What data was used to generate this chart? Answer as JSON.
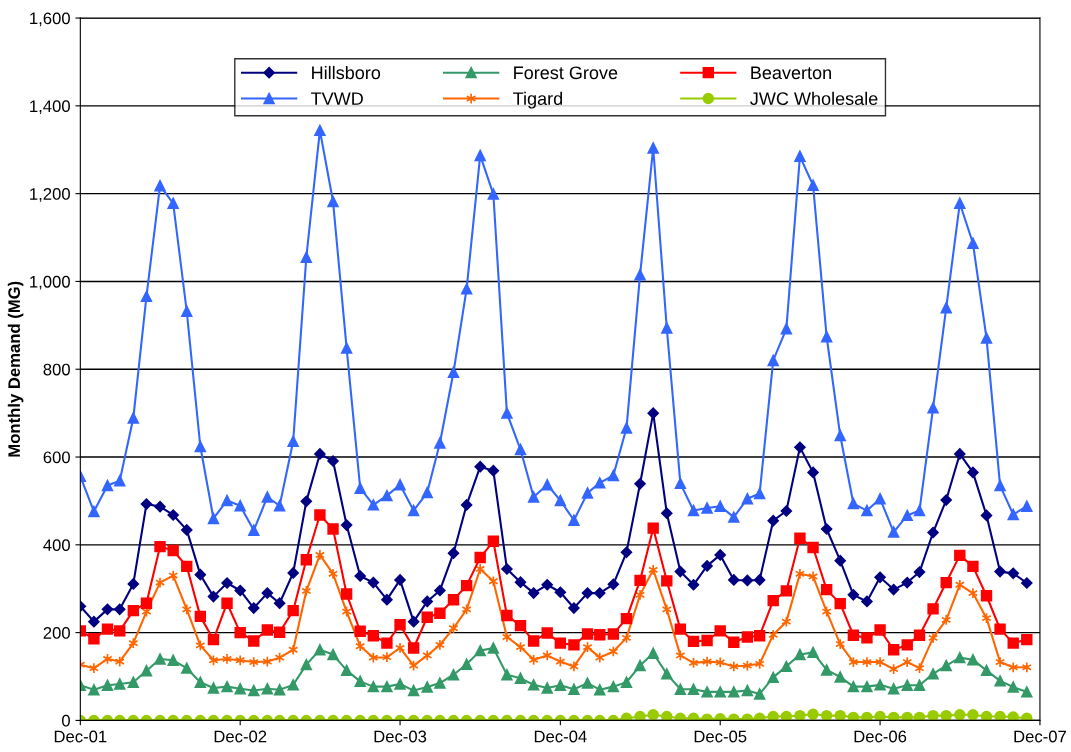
{
  "chart_data": {
    "type": "line",
    "ylabel": "Monthly Demand (MG)",
    "x": [
      "2001-12",
      "2002-01",
      "2002-02",
      "2002-03",
      "2002-04",
      "2002-05",
      "2002-06",
      "2002-07",
      "2002-08",
      "2002-09",
      "2002-10",
      "2002-11",
      "2002-12",
      "2003-01",
      "2003-02",
      "2003-03",
      "2003-04",
      "2003-05",
      "2003-06",
      "2003-07",
      "2003-08",
      "2003-09",
      "2003-10",
      "2003-11",
      "2003-12",
      "2004-01",
      "2004-02",
      "2004-03",
      "2004-04",
      "2004-05",
      "2004-06",
      "2004-07",
      "2004-08",
      "2004-09",
      "2004-10",
      "2004-11",
      "2004-12",
      "2005-01",
      "2005-02",
      "2005-03",
      "2005-04",
      "2005-05",
      "2005-06",
      "2005-07",
      "2005-08",
      "2005-09",
      "2005-10",
      "2005-11",
      "2005-12",
      "2006-01",
      "2006-02",
      "2006-03",
      "2006-04",
      "2006-05",
      "2006-06",
      "2006-07",
      "2006-08",
      "2006-09",
      "2006-10",
      "2006-11",
      "2006-12",
      "2007-01",
      "2007-02",
      "2007-03",
      "2007-04",
      "2007-05",
      "2007-06",
      "2007-07",
      "2007-08",
      "2007-09",
      "2007-10",
      "2007-11"
    ],
    "series": [
      {
        "name": "Hillsboro",
        "color": "#000080",
        "marker": "diamond",
        "values": [
          260,
          225,
          253,
          253,
          311,
          493,
          487,
          468,
          434,
          332,
          282,
          313,
          296,
          256,
          290,
          267,
          336,
          499,
          607,
          591,
          445,
          329,
          314,
          275,
          320,
          225,
          271,
          296,
          381,
          491,
          578,
          569,
          345,
          315,
          290,
          309,
          292,
          256,
          290,
          290,
          310,
          383,
          539,
          700,
          472,
          339,
          309,
          352,
          377,
          320,
          319,
          320,
          455,
          477,
          622,
          565,
          436,
          364,
          286,
          271,
          326,
          298,
          314,
          338,
          428,
          502,
          607,
          565,
          467,
          339,
          335,
          313
        ]
      },
      {
        "name": "TVWD",
        "color": "#3366ff",
        "marker": "triangle",
        "values": [
          556,
          476,
          535,
          546,
          689,
          966,
          1218,
          1178,
          932,
          624,
          460,
          501,
          489,
          433,
          509,
          489,
          636,
          1055,
          1344,
          1182,
          848,
          529,
          491,
          512,
          537,
          478,
          519,
          632,
          793,
          983,
          1287,
          1199,
          700,
          617,
          509,
          537,
          501,
          456,
          518,
          541,
          558,
          666,
          1015,
          1304,
          894,
          540,
          478,
          484,
          488,
          463,
          505,
          517,
          820,
          892,
          1285,
          1219,
          874,
          649,
          494,
          478,
          505,
          429,
          467,
          478,
          712,
          940,
          1178,
          1087,
          871,
          535,
          469,
          488
        ]
      },
      {
        "name": "Forest Grove",
        "color": "#339966",
        "marker": "triangle",
        "values": [
          80,
          70,
          80,
          83,
          87,
          113,
          140,
          137,
          119,
          87,
          74,
          77,
          72,
          68,
          72,
          70,
          81,
          127,
          161,
          150,
          114,
          89,
          77,
          77,
          83,
          68,
          76,
          85,
          104,
          128,
          159,
          165,
          104,
          96,
          81,
          74,
          80,
          71,
          85,
          70,
          77,
          87,
          125,
          153,
          106,
          71,
          71,
          65,
          65,
          65,
          68,
          60,
          98,
          123,
          150,
          155,
          115,
          99,
          77,
          77,
          81,
          72,
          80,
          80,
          106,
          125,
          143,
          138,
          114,
          90,
          76,
          65
        ]
      },
      {
        "name": "Tigard",
        "color": "#ff6600",
        "marker": "cross",
        "values": [
          127,
          119,
          140,
          134,
          176,
          248,
          314,
          330,
          253,
          171,
          137,
          140,
          137,
          133,
          134,
          143,
          161,
          295,
          377,
          334,
          248,
          169,
          143,
          144,
          165,
          125,
          148,
          172,
          210,
          253,
          345,
          317,
          190,
          167,
          138,
          148,
          134,
          123,
          167,
          143,
          157,
          188,
          286,
          343,
          253,
          148,
          131,
          134,
          132,
          123,
          125,
          129,
          195,
          225,
          334,
          328,
          248,
          174,
          133,
          133,
          133,
          117,
          133,
          119,
          188,
          229,
          309,
          290,
          233,
          133,
          121,
          121
        ]
      },
      {
        "name": "Beaverton",
        "color": "#ff0000",
        "marker": "square",
        "values": [
          204,
          186,
          208,
          204,
          250,
          267,
          396,
          387,
          351,
          237,
          184,
          267,
          200,
          181,
          206,
          201,
          250,
          366,
          468,
          436,
          288,
          203,
          193,
          176,
          218,
          165,
          235,
          244,
          275,
          307,
          371,
          408,
          239,
          216,
          181,
          199,
          176,
          172,
          197,
          195,
          197,
          232,
          319,
          438,
          318,
          208,
          180,
          182,
          204,
          178,
          190,
          193,
          273,
          295,
          415,
          394,
          298,
          266,
          194,
          188,
          206,
          161,
          172,
          194,
          254,
          314,
          376,
          351,
          284,
          208,
          176,
          184
        ]
      },
      {
        "name": "JWC Wholesale",
        "color": "#99cc00",
        "marker": "circle",
        "values": [
          0,
          0,
          0,
          0,
          0,
          0,
          0,
          0,
          0,
          0,
          0,
          0,
          0,
          0,
          0,
          0,
          0,
          0,
          0,
          0,
          0,
          0,
          0,
          0,
          0,
          0,
          0,
          0,
          0,
          0,
          0,
          0,
          0,
          0,
          0,
          0,
          0,
          0,
          0,
          0,
          0,
          5,
          9,
          13,
          9,
          5,
          5,
          3,
          4,
          3,
          3,
          5,
          9,
          9,
          11,
          14,
          11,
          11,
          7,
          7,
          9,
          7,
          7,
          7,
          11,
          11,
          13,
          13,
          9,
          9,
          8,
          5
        ]
      }
    ],
    "xlim": [
      "2001-12",
      "2007-12"
    ],
    "xticks": [
      {
        "value": "2001-12",
        "label": "Dec-01"
      },
      {
        "value": "2002-12",
        "label": "Dec-02"
      },
      {
        "value": "2003-12",
        "label": "Dec-03"
      },
      {
        "value": "2004-12",
        "label": "Dec-04"
      },
      {
        "value": "2005-12",
        "label": "Dec-05"
      },
      {
        "value": "2006-12",
        "label": "Dec-06"
      },
      {
        "value": "2007-12",
        "label": "Dec-07"
      }
    ],
    "ylim": [
      0,
      1600
    ],
    "yticks": [
      0,
      200,
      400,
      600,
      800,
      {
        "value": 1000,
        "label": "1,000"
      },
      {
        "value": 1200,
        "label": "1,200"
      },
      {
        "value": 1400,
        "label": "1,400"
      },
      {
        "value": 1600,
        "label": "1,600"
      }
    ],
    "grid": "y",
    "legend": "top",
    "line_style": "solid"
  }
}
